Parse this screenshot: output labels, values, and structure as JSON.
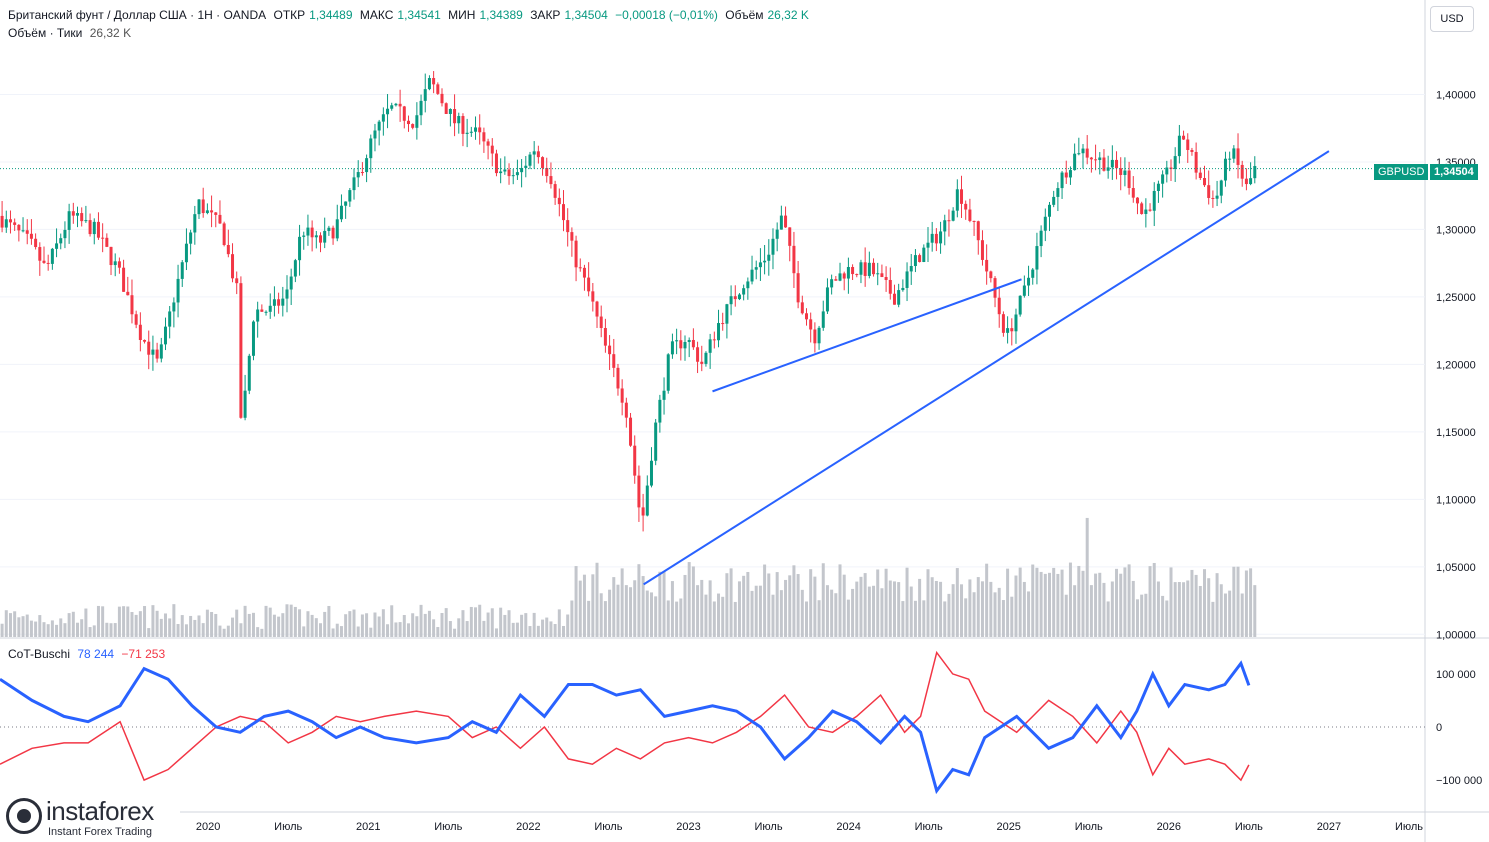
{
  "header": {
    "symbol": "Британский фунт / Доллар США · 1Н · OANDA",
    "open_label": "ОТКР",
    "open": "1,34489",
    "high_label": "МАКС",
    "high": "1,34541",
    "low_label": "МИН",
    "low": "1,34389",
    "close_label": "ЗАКР",
    "close": "1,34504",
    "change": "−0,00018 (−0,01%)",
    "volume_label": "Объём",
    "volume": "26,32 K",
    "volume_row_label": "Объём · Тики",
    "volume_row_value": "26,32 K"
  },
  "currency_button": "USD",
  "price_tag": {
    "symbol": "GBPUSD",
    "value": "1,34504"
  },
  "indicator": {
    "name": "CoT-Buschi",
    "val1": "78 244",
    "val2": "−71 253"
  },
  "brand": {
    "name": "instaforex",
    "tagline": "Instant Forex Trading"
  },
  "colors": {
    "up": "#089981",
    "down": "#f23645",
    "trend": "#2962ff",
    "blue_line": "#2962ff",
    "red_line": "#f23645",
    "volume": "#c3c6cc"
  },
  "chart_data": {
    "type": "candlestick",
    "price_axis": [
      "1,40000",
      "1,35000",
      "1,30000",
      "1,25000",
      "1,20000",
      "1,15000",
      "1,10000",
      "1,05000",
      "1,00000"
    ],
    "price_values": [
      1.4,
      1.35,
      1.3,
      1.25,
      1.2,
      1.15,
      1.1,
      1.05,
      1.0
    ],
    "time_axis": [
      "2020",
      "Июль",
      "2021",
      "Июль",
      "2022",
      "Июль",
      "2023",
      "Июль",
      "2024",
      "Июль",
      "2025",
      "Июль",
      "2026",
      "Июль",
      "2027",
      "Июль"
    ],
    "time_values": [
      2020.0,
      2020.5,
      2021.0,
      2021.5,
      2022.0,
      2022.5,
      2023.0,
      2023.5,
      2024.0,
      2024.5,
      2025.0,
      2025.5,
      2026.0,
      2026.5,
      2027.0,
      2027.5
    ],
    "x_range": [
      2018.7,
      2027.6
    ],
    "y_range": [
      0.998,
      1.47
    ],
    "price_path": [
      [
        2018.7,
        1.31
      ],
      [
        2018.9,
        1.29
      ],
      [
        2019.0,
        1.27
      ],
      [
        2019.15,
        1.31
      ],
      [
        2019.3,
        1.3
      ],
      [
        2019.45,
        1.27
      ],
      [
        2019.6,
        1.22
      ],
      [
        2019.7,
        1.2
      ],
      [
        2019.8,
        1.25
      ],
      [
        2019.95,
        1.32
      ],
      [
        2020.1,
        1.3
      ],
      [
        2020.2,
        1.25
      ],
      [
        2020.22,
        1.15
      ],
      [
        2020.3,
        1.24
      ],
      [
        2020.4,
        1.24
      ],
      [
        2020.5,
        1.25
      ],
      [
        2020.6,
        1.3
      ],
      [
        2020.7,
        1.29
      ],
      [
        2020.8,
        1.3
      ],
      [
        2020.95,
        1.34
      ],
      [
        2021.05,
        1.37
      ],
      [
        2021.15,
        1.39
      ],
      [
        2021.3,
        1.38
      ],
      [
        2021.4,
        1.41
      ],
      [
        2021.55,
        1.38
      ],
      [
        2021.7,
        1.37
      ],
      [
        2021.85,
        1.34
      ],
      [
        2021.95,
        1.34
      ],
      [
        2022.05,
        1.36
      ],
      [
        2022.15,
        1.34
      ],
      [
        2022.3,
        1.28
      ],
      [
        2022.4,
        1.25
      ],
      [
        2022.5,
        1.21
      ],
      [
        2022.62,
        1.17
      ],
      [
        2022.72,
        1.08
      ],
      [
        2022.8,
        1.15
      ],
      [
        2022.9,
        1.21
      ],
      [
        2023.0,
        1.22
      ],
      [
        2023.1,
        1.2
      ],
      [
        2023.2,
        1.23
      ],
      [
        2023.35,
        1.26
      ],
      [
        2023.5,
        1.28
      ],
      [
        2023.6,
        1.31
      ],
      [
        2023.7,
        1.25
      ],
      [
        2023.8,
        1.22
      ],
      [
        2023.9,
        1.26
      ],
      [
        2024.0,
        1.27
      ],
      [
        2024.15,
        1.27
      ],
      [
        2024.3,
        1.25
      ],
      [
        2024.45,
        1.28
      ],
      [
        2024.6,
        1.3
      ],
      [
        2024.7,
        1.33
      ],
      [
        2024.8,
        1.3
      ],
      [
        2024.9,
        1.26
      ],
      [
        2025.0,
        1.22
      ],
      [
        2025.1,
        1.25
      ],
      [
        2025.2,
        1.29
      ],
      [
        2025.3,
        1.33
      ],
      [
        2025.45,
        1.36
      ],
      [
        2025.6,
        1.35
      ],
      [
        2025.75,
        1.34
      ],
      [
        2025.85,
        1.31
      ],
      [
        2026.0,
        1.34
      ],
      [
        2026.1,
        1.37
      ],
      [
        2026.2,
        1.34
      ],
      [
        2026.3,
        1.32
      ],
      [
        2026.4,
        1.36
      ],
      [
        2026.5,
        1.33
      ],
      [
        2026.55,
        1.345
      ]
    ],
    "trendlines": [
      {
        "from": [
          2022.72,
          1.037
        ],
        "to": [
          2027.0,
          1.358
        ]
      },
      {
        "from": [
          2023.15,
          1.18
        ],
        "to": [
          2025.08,
          1.263
        ]
      }
    ],
    "last_price": 1.34504,
    "cot_axis": [
      "100 000",
      "0",
      "−100 000"
    ],
    "cot_values": [
      100000,
      0,
      -100000
    ],
    "cot_range": [
      -160000,
      160000
    ],
    "cot_blue": [
      [
        2018.7,
        90000
      ],
      [
        2018.9,
        50000
      ],
      [
        2019.1,
        20000
      ],
      [
        2019.25,
        10000
      ],
      [
        2019.45,
        40000
      ],
      [
        2019.6,
        110000
      ],
      [
        2019.75,
        90000
      ],
      [
        2019.9,
        40000
      ],
      [
        2020.05,
        0
      ],
      [
        2020.2,
        -10000
      ],
      [
        2020.35,
        20000
      ],
      [
        2020.5,
        30000
      ],
      [
        2020.65,
        10000
      ],
      [
        2020.8,
        -20000
      ],
      [
        2020.95,
        0
      ],
      [
        2021.1,
        -20000
      ],
      [
        2021.3,
        -30000
      ],
      [
        2021.5,
        -20000
      ],
      [
        2021.65,
        10000
      ],
      [
        2021.8,
        -10000
      ],
      [
        2021.95,
        60000
      ],
      [
        2022.1,
        20000
      ],
      [
        2022.25,
        80000
      ],
      [
        2022.4,
        80000
      ],
      [
        2022.55,
        60000
      ],
      [
        2022.7,
        70000
      ],
      [
        2022.85,
        20000
      ],
      [
        2023.0,
        30000
      ],
      [
        2023.15,
        40000
      ],
      [
        2023.3,
        30000
      ],
      [
        2023.45,
        0
      ],
      [
        2023.6,
        -60000
      ],
      [
        2023.75,
        -20000
      ],
      [
        2023.9,
        30000
      ],
      [
        2024.05,
        10000
      ],
      [
        2024.2,
        -30000
      ],
      [
        2024.35,
        20000
      ],
      [
        2024.45,
        -10000
      ],
      [
        2024.55,
        -120000
      ],
      [
        2024.65,
        -80000
      ],
      [
        2024.75,
        -90000
      ],
      [
        2024.85,
        -20000
      ],
      [
        2024.95,
        0
      ],
      [
        2025.05,
        20000
      ],
      [
        2025.15,
        -10000
      ],
      [
        2025.25,
        -40000
      ],
      [
        2025.4,
        -20000
      ],
      [
        2025.55,
        40000
      ],
      [
        2025.7,
        -20000
      ],
      [
        2025.8,
        30000
      ],
      [
        2025.9,
        100000
      ],
      [
        2026.0,
        40000
      ],
      [
        2026.1,
        80000
      ],
      [
        2026.25,
        70000
      ],
      [
        2026.35,
        80000
      ],
      [
        2026.45,
        120000
      ],
      [
        2026.5,
        78244
      ]
    ],
    "cot_red": [
      [
        2018.7,
        -70000
      ],
      [
        2018.9,
        -40000
      ],
      [
        2019.1,
        -30000
      ],
      [
        2019.25,
        -30000
      ],
      [
        2019.45,
        10000
      ],
      [
        2019.6,
        -100000
      ],
      [
        2019.75,
        -80000
      ],
      [
        2019.9,
        -40000
      ],
      [
        2020.05,
        0
      ],
      [
        2020.2,
        20000
      ],
      [
        2020.35,
        10000
      ],
      [
        2020.5,
        -30000
      ],
      [
        2020.65,
        -10000
      ],
      [
        2020.8,
        20000
      ],
      [
        2020.95,
        10000
      ],
      [
        2021.1,
        20000
      ],
      [
        2021.3,
        30000
      ],
      [
        2021.5,
        20000
      ],
      [
        2021.65,
        -20000
      ],
      [
        2021.8,
        0
      ],
      [
        2021.95,
        -40000
      ],
      [
        2022.1,
        0
      ],
      [
        2022.25,
        -60000
      ],
      [
        2022.4,
        -70000
      ],
      [
        2022.55,
        -40000
      ],
      [
        2022.7,
        -60000
      ],
      [
        2022.85,
        -30000
      ],
      [
        2023.0,
        -20000
      ],
      [
        2023.15,
        -30000
      ],
      [
        2023.3,
        -10000
      ],
      [
        2023.45,
        20000
      ],
      [
        2023.6,
        60000
      ],
      [
        2023.75,
        0
      ],
      [
        2023.9,
        -10000
      ],
      [
        2024.05,
        20000
      ],
      [
        2024.2,
        60000
      ],
      [
        2024.35,
        -10000
      ],
      [
        2024.45,
        20000
      ],
      [
        2024.55,
        140000
      ],
      [
        2024.65,
        100000
      ],
      [
        2024.75,
        90000
      ],
      [
        2024.85,
        30000
      ],
      [
        2024.95,
        10000
      ],
      [
        2025.05,
        -10000
      ],
      [
        2025.15,
        20000
      ],
      [
        2025.25,
        50000
      ],
      [
        2025.4,
        20000
      ],
      [
        2025.55,
        -30000
      ],
      [
        2025.7,
        30000
      ],
      [
        2025.8,
        -10000
      ],
      [
        2025.9,
        -90000
      ],
      [
        2026.0,
        -40000
      ],
      [
        2026.1,
        -70000
      ],
      [
        2026.25,
        -60000
      ],
      [
        2026.35,
        -70000
      ],
      [
        2026.45,
        -100000
      ],
      [
        2026.5,
        -71253
      ]
    ]
  }
}
